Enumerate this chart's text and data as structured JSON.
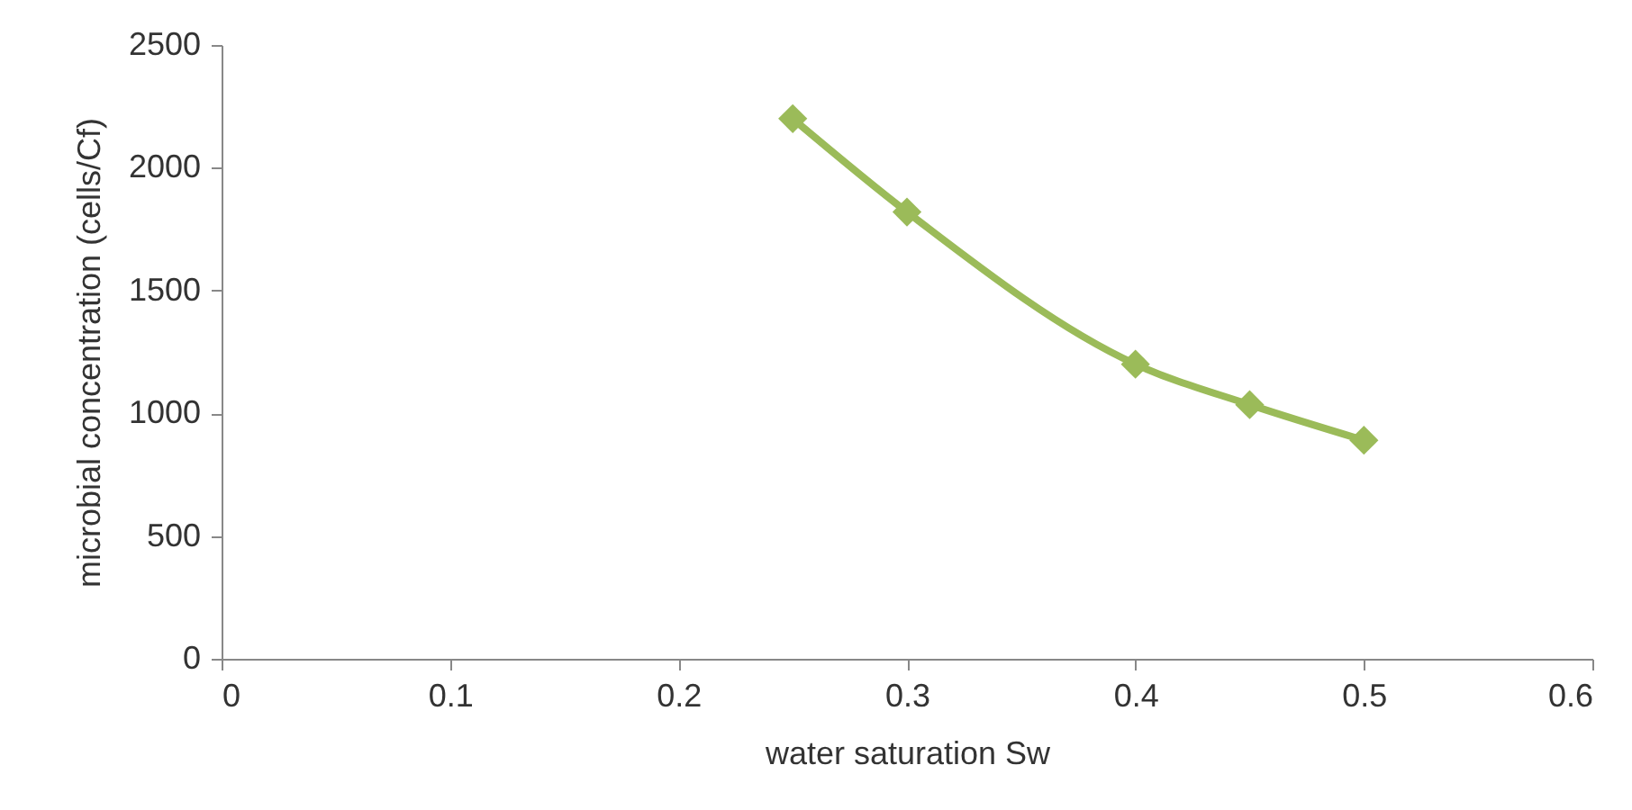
{
  "chart_data": {
    "type": "line",
    "xlabel": "water saturation Sw",
    "ylabel": "microbial concentration (cells/Cf)",
    "x": [
      0.25,
      0.3,
      0.4,
      0.45,
      0.5
    ],
    "series": [
      {
        "color": "#9bbb59",
        "values": [
          2200,
          1820,
          1200,
          1035,
          890
        ]
      }
    ],
    "xlim": [
      0,
      0.6
    ],
    "xticks": [
      0,
      0.1,
      0.2,
      0.3,
      0.4,
      0.5,
      0.6
    ],
    "ylim": [
      0,
      2500
    ],
    "yticks": [
      0,
      500,
      1000,
      1500,
      2000,
      2500
    ],
    "marker": "diamond",
    "line_style": "solid",
    "grid": false
  }
}
